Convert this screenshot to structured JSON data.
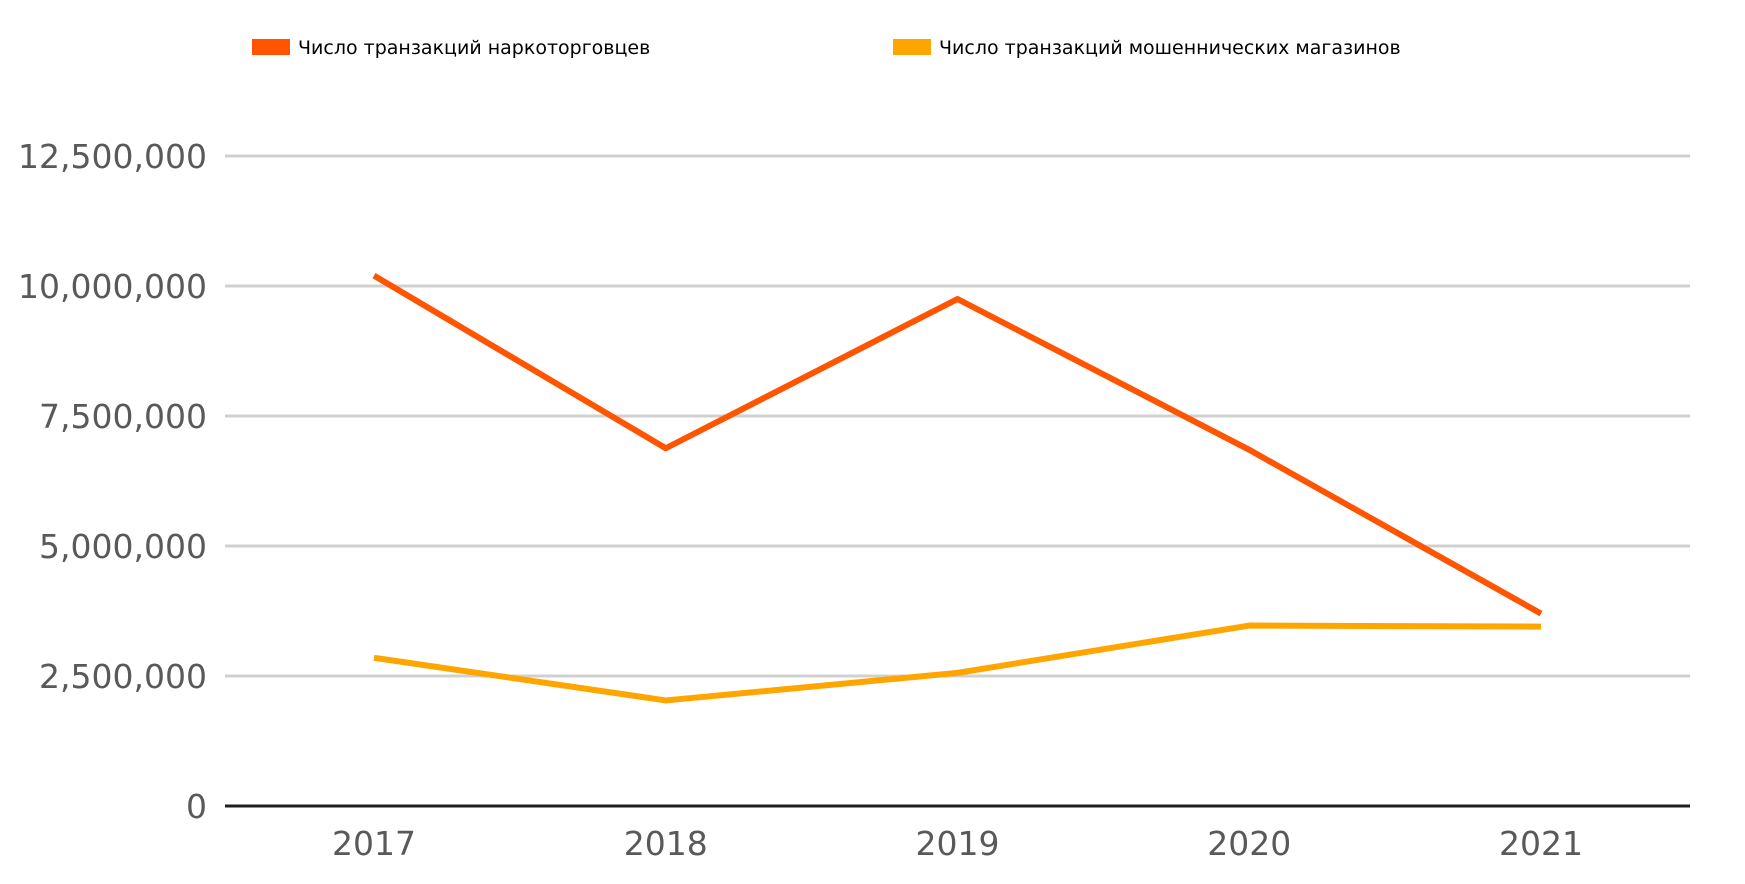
{
  "chart_data": {
    "type": "line",
    "title": "",
    "xlabel": "",
    "ylabel": "",
    "categories": [
      "2017",
      "2018",
      "2019",
      "2020",
      "2021"
    ],
    "series": [
      {
        "name": "Число транзакций наркоторговцев",
        "color": "#FF5400",
        "values": [
          10200000,
          6880000,
          9750000,
          6850000,
          3700000
        ]
      },
      {
        "name": "Число транзакций мошеннических магазинов",
        "color": "#FFA500",
        "values": [
          2850000,
          2030000,
          2560000,
          3470000,
          3450000
        ]
      }
    ],
    "ylim": [
      0,
      12500000
    ],
    "yticks": [
      0,
      2500000,
      5000000,
      7500000,
      10000000,
      12500000
    ],
    "ytick_labels": [
      "0",
      "2,500,000",
      "5,000,000",
      "7,500,000",
      "10,000,000",
      "12,500,000"
    ],
    "grid": true,
    "legend": "top",
    "colors": {
      "grid": "#D0D0D0",
      "axis": "#1F1F1F",
      "tick_text": "#595959"
    }
  }
}
